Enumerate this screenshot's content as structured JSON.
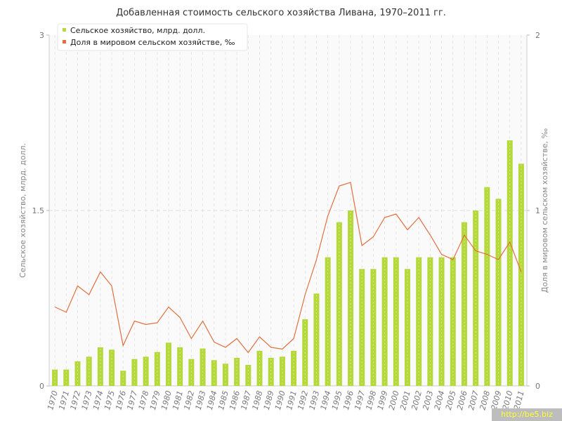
{
  "chart_data": {
    "type": "bar",
    "title": "Добавленная стоимость сельского хозяйства Ливана, 1970–2011 гг.",
    "ylabel": "Сельское хозяйство, млрд. долл.",
    "y2label": "Доля в мировом сельском хозяйстве, ‰",
    "ylim": [
      0,
      3
    ],
    "y2lim": [
      0,
      2
    ],
    "yticks": [
      "0",
      "1.5",
      "3"
    ],
    "y2ticks": [
      "0",
      "1",
      "2"
    ],
    "grid": true,
    "legend_position": "top-left",
    "categories": [
      "1970",
      "1971",
      "1972",
      "1973",
      "1974",
      "1975",
      "1976",
      "1977",
      "1978",
      "1979",
      "1980",
      "1981",
      "1982",
      "1983",
      "1984",
      "1985",
      "1986",
      "1987",
      "1988",
      "1989",
      "1990",
      "1991",
      "1992",
      "1993",
      "1994",
      "1995",
      "1996",
      "1997",
      "1998",
      "1999",
      "2000",
      "2001",
      "2002",
      "2003",
      "2004",
      "2005",
      "2006",
      "2007",
      "2008",
      "2009",
      "2010",
      "2011"
    ],
    "series": [
      {
        "name": "Сельское хозяйство, млрд. долл.",
        "type": "bar",
        "axis": "left",
        "color": "#b5d93a",
        "values": [
          0.14,
          0.14,
          0.21,
          0.25,
          0.33,
          0.31,
          0.13,
          0.23,
          0.25,
          0.29,
          0.37,
          0.33,
          0.23,
          0.32,
          0.22,
          0.19,
          0.24,
          0.18,
          0.3,
          0.24,
          0.25,
          0.3,
          0.57,
          0.79,
          1.1,
          1.4,
          1.5,
          1.0,
          1.0,
          1.1,
          1.1,
          1.0,
          1.1,
          1.1,
          1.1,
          1.1,
          1.4,
          1.5,
          1.7,
          1.6,
          2.1,
          1.9
        ]
      },
      {
        "name": "Доля в мировом сельском хозяйстве, ‰",
        "type": "line",
        "axis": "right",
        "color": "#e07040",
        "values": [
          0.45,
          0.42,
          0.57,
          0.52,
          0.65,
          0.57,
          0.23,
          0.37,
          0.35,
          0.36,
          0.45,
          0.39,
          0.27,
          0.37,
          0.25,
          0.22,
          0.27,
          0.19,
          0.28,
          0.22,
          0.21,
          0.27,
          0.52,
          0.72,
          0.97,
          1.14,
          1.16,
          0.8,
          0.85,
          0.96,
          0.98,
          0.89,
          0.96,
          0.86,
          0.75,
          0.72,
          0.86,
          0.77,
          0.75,
          0.72,
          0.82,
          0.65
        ]
      }
    ]
  },
  "watermark": "http://be5.biz"
}
